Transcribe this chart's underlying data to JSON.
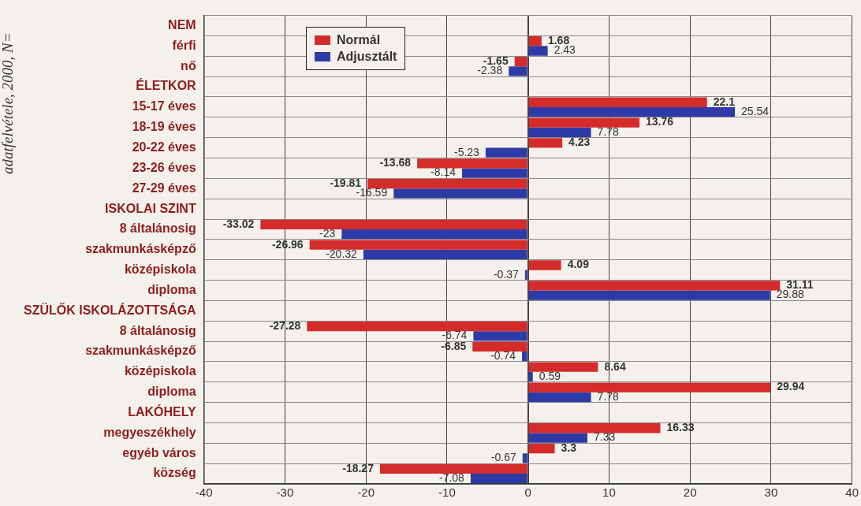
{
  "chart_data": {
    "type": "bar",
    "orientation": "horizontal",
    "categories": [
      "NEM",
      "férfi",
      "nő",
      "ÉLETKOR",
      "15-17 éves",
      "18-19 éves",
      "20-22 éves",
      "23-26 éves",
      "27-29 éves",
      "ISKOLAI SZINT",
      "8 általánosig",
      "szakmunkásképző",
      "középiskola",
      "diploma",
      "SZÜLŐK ISKOLÁZOTTSÁGA",
      "8 általánosig",
      "szakmunkásképző",
      "középiskola",
      "diploma",
      "LAKÓHELY",
      "megyeszékhely",
      "egyéb város",
      "község"
    ],
    "series": [
      {
        "name": "Normál",
        "color": "#d42b2b",
        "values": [
          null,
          1.68,
          -1.65,
          null,
          22.1,
          13.76,
          4.23,
          -13.68,
          -19.81,
          null,
          -33.02,
          -26.96,
          4.09,
          31.11,
          null,
          -27.28,
          -6.85,
          8.64,
          29.94,
          null,
          16.33,
          3.3,
          -18.27
        ]
      },
      {
        "name": "Adjusztált",
        "color": "#2e3aa6",
        "values": [
          null,
          2.43,
          -2.38,
          null,
          25.54,
          7.78,
          -5.23,
          -8.14,
          -16.59,
          null,
          -23,
          -20.32,
          -0.37,
          29.88,
          null,
          -6.74,
          -0.74,
          0.59,
          7.78,
          null,
          7.33,
          -0.67,
          -7.08
        ]
      }
    ],
    "xlim": [
      -40,
      40
    ],
    "xticks": [
      -40,
      -30,
      -20,
      -10,
      0,
      10,
      20,
      30,
      40
    ],
    "grid": true,
    "legend": "top left",
    "data_labels": true,
    "annotations": [
      "adatfelvétele, 2000, N="
    ]
  }
}
